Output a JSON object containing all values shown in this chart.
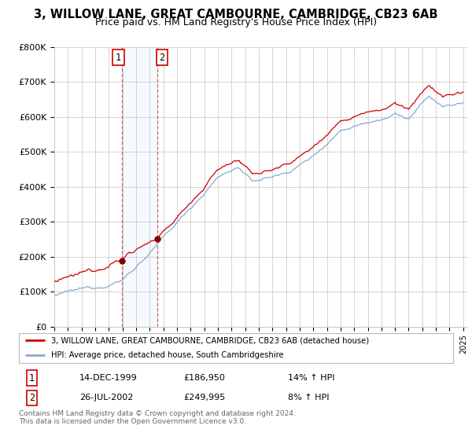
{
  "title": "3, WILLOW LANE, GREAT CAMBOURNE, CAMBRIDGE, CB23 6AB",
  "subtitle": "Price paid vs. HM Land Registry's House Price Index (HPI)",
  "ylim": [
    0,
    800000
  ],
  "yticks": [
    0,
    100000,
    200000,
    300000,
    400000,
    500000,
    600000,
    700000,
    800000
  ],
  "ytick_labels": [
    "£0",
    "£100K",
    "£200K",
    "£300K",
    "£400K",
    "£500K",
    "£600K",
    "£700K",
    "£800K"
  ],
  "line1_color": "#cc0000",
  "line2_color": "#88aacc",
  "sale1_date": 1999.95,
  "sale1_price": 186950,
  "sale1_label": "1",
  "sale2_date": 2002.56,
  "sale2_price": 249995,
  "sale2_label": "2",
  "legend_line1": "3, WILLOW LANE, GREAT CAMBOURNE, CAMBRIDGE, CB23 6AB (detached house)",
  "legend_line2": "HPI: Average price, detached house, South Cambridgeshire",
  "table_rows": [
    [
      "1",
      "14-DEC-1999",
      "£186,950",
      "14% ↑ HPI"
    ],
    [
      "2",
      "26-JUL-2002",
      "£249,995",
      "8% ↑ HPI"
    ]
  ],
  "footer": "Contains HM Land Registry data © Crown copyright and database right 2024.\nThis data is licensed under the Open Government Licence v3.0.",
  "bg_color": "#ffffff",
  "grid_color": "#cccccc",
  "title_fontsize": 10.5,
  "subtitle_fontsize": 9,
  "tick_fontsize": 8
}
